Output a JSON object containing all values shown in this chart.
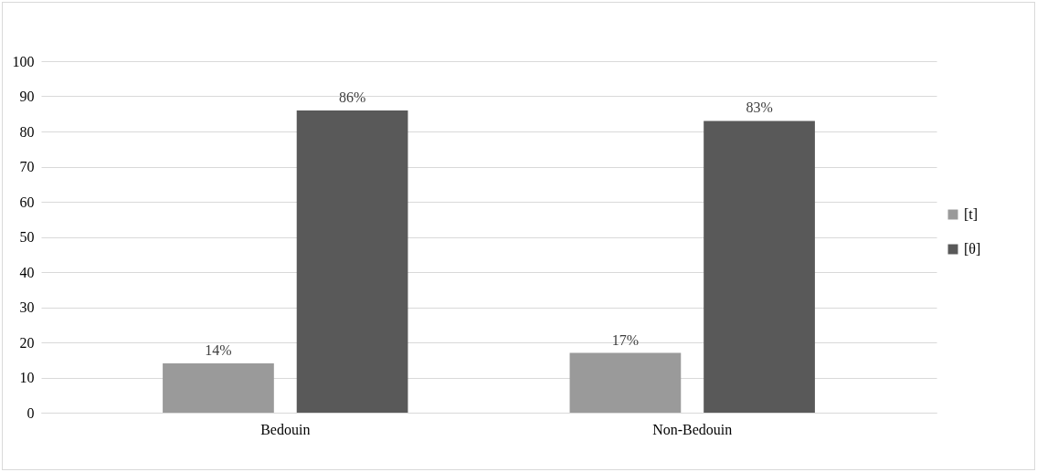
{
  "chart_data": {
    "type": "bar",
    "categories": [
      "Bedouin",
      "Non-Bedouin"
    ],
    "series": [
      {
        "name": "[t]",
        "color": "#9a9a9a",
        "values": [
          14,
          17
        ],
        "value_labels": [
          "14%",
          "17%"
        ]
      },
      {
        "name": "[θ]",
        "color": "#595959",
        "values": [
          86,
          83
        ],
        "value_labels": [
          "86%",
          "83%"
        ]
      }
    ],
    "ylim": [
      0,
      100
    ],
    "yticks": [
      0,
      10,
      20,
      30,
      40,
      50,
      60,
      70,
      80,
      90,
      100
    ],
    "grid": "y",
    "legend": "right"
  }
}
